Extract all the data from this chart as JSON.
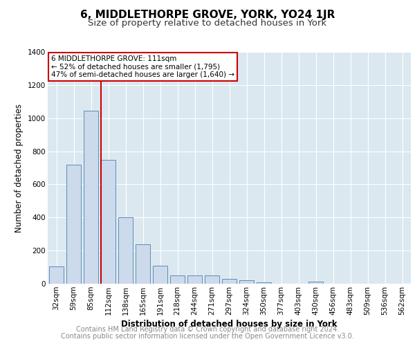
{
  "title": "6, MIDDLETHORPE GROVE, YORK, YO24 1JR",
  "subtitle": "Size of property relative to detached houses in York",
  "xlabel": "Distribution of detached houses by size in York",
  "ylabel": "Number of detached properties",
  "footer_line1": "Contains HM Land Registry data © Crown copyright and database right 2024.",
  "footer_line2": "Contains public sector information licensed under the Open Government Licence v3.0.",
  "categories": [
    "32sqm",
    "59sqm",
    "85sqm",
    "112sqm",
    "138sqm",
    "165sqm",
    "191sqm",
    "218sqm",
    "244sqm",
    "271sqm",
    "297sqm",
    "324sqm",
    "350sqm",
    "377sqm",
    "403sqm",
    "430sqm",
    "456sqm",
    "483sqm",
    "509sqm",
    "536sqm",
    "562sqm"
  ],
  "values": [
    105,
    720,
    1045,
    748,
    400,
    238,
    110,
    50,
    50,
    50,
    30,
    22,
    10,
    0,
    0,
    12,
    0,
    0,
    0,
    0,
    0
  ],
  "bar_color": "#ccdaeb",
  "bar_edge_color": "#5b8db8",
  "vline_x_index": 3,
  "vline_color": "#cc0000",
  "annotation_text": "6 MIDDLETHORPE GROVE: 111sqm\n← 52% of detached houses are smaller (1,795)\n47% of semi-detached houses are larger (1,640) →",
  "annotation_box_color": "#cc0000",
  "annotation_text_color": "#000000",
  "ylim": [
    0,
    1400
  ],
  "background_color": "#dce8f0",
  "grid_color": "#ffffff",
  "title_fontsize": 11,
  "subtitle_fontsize": 9.5,
  "axis_label_fontsize": 8.5,
  "ylabel_fontsize": 8.5,
  "tick_fontsize": 7.5,
  "footer_fontsize": 7,
  "bar_width": 0.85
}
